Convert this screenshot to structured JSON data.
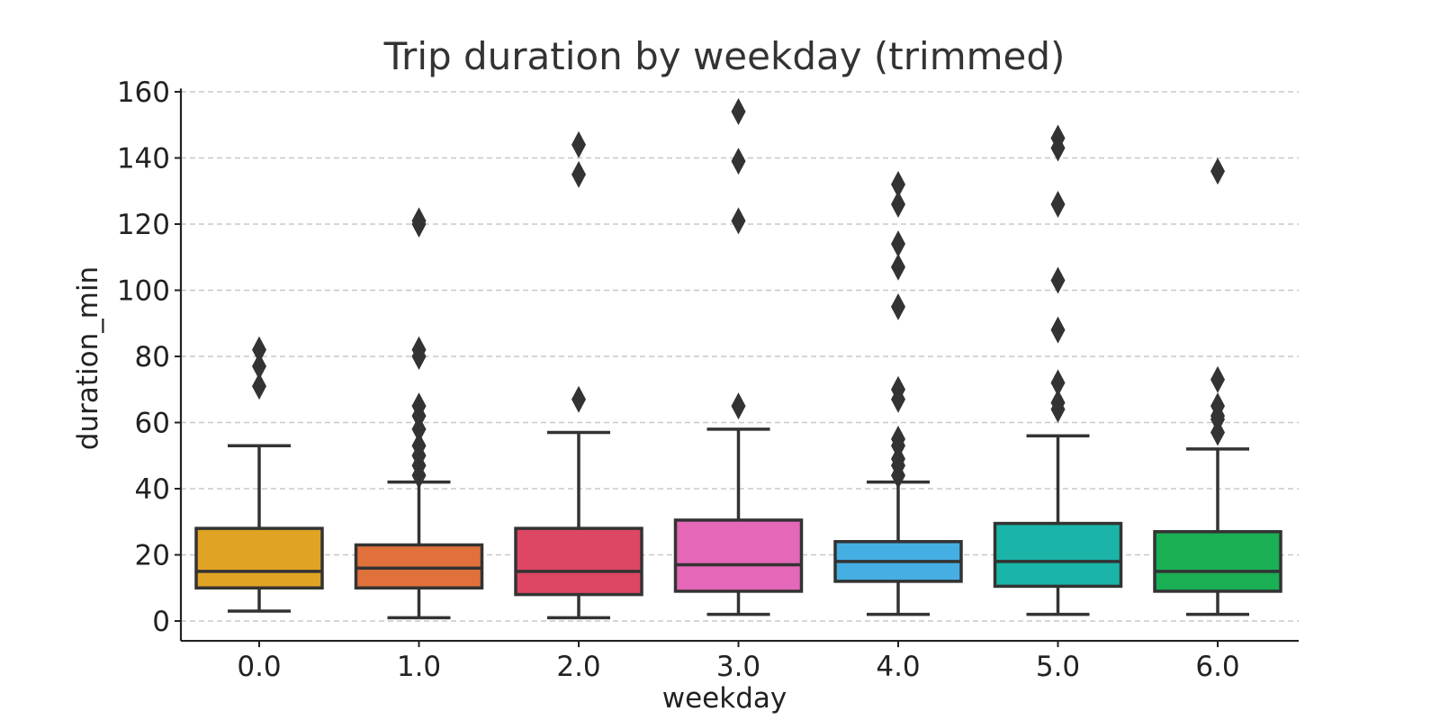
{
  "chart_data": {
    "type": "box",
    "title": "Trip duration by weekday (trimmed)",
    "xlabel": "weekday",
    "ylabel": "duration_min",
    "ylim": [
      -6,
      161
    ],
    "yticks": [
      "0",
      "20",
      "40",
      "60",
      "80",
      "100",
      "120",
      "140",
      "160"
    ],
    "grid": "horizontal-dashed",
    "categories": [
      "0.0",
      "1.0",
      "2.0",
      "3.0",
      "4.0",
      "5.0",
      "6.0"
    ],
    "colors": [
      "#e0a324",
      "#e0713a",
      "#dd4763",
      "#e468b7",
      "#45afe3",
      "#1ab4a8",
      "#1aae55"
    ],
    "boxes": [
      {
        "whisker_low": 3,
        "q1": 10,
        "median": 15,
        "q3": 28,
        "whisker_high": 53,
        "outliers": [
          71,
          77,
          82
        ]
      },
      {
        "whisker_low": 1,
        "q1": 10,
        "median": 16,
        "q3": 23,
        "whisker_high": 42,
        "outliers": [
          44,
          47,
          50,
          53,
          58,
          62,
          65,
          80,
          82,
          120,
          121
        ]
      },
      {
        "whisker_low": 1,
        "q1": 8,
        "median": 15,
        "q3": 28,
        "whisker_high": 57,
        "outliers": [
          67,
          135,
          144
        ]
      },
      {
        "whisker_low": 2,
        "q1": 9,
        "median": 17,
        "q3": 30.5,
        "whisker_high": 58,
        "outliers": [
          65,
          121,
          139,
          154
        ]
      },
      {
        "whisker_low": 2,
        "q1": 12,
        "median": 18,
        "q3": 24,
        "whisker_high": 42,
        "outliers": [
          44,
          47,
          49,
          53,
          55,
          67,
          70,
          95,
          107,
          114,
          126,
          132
        ]
      },
      {
        "whisker_low": 2,
        "q1": 10.5,
        "median": 18,
        "q3": 29.5,
        "whisker_high": 56,
        "outliers": [
          64,
          66,
          72,
          88,
          103,
          126,
          143,
          146
        ]
      },
      {
        "whisker_low": 2,
        "q1": 9,
        "median": 15,
        "q3": 27,
        "whisker_high": 52,
        "outliers": [
          57,
          61,
          62,
          65,
          73,
          136
        ]
      }
    ]
  }
}
